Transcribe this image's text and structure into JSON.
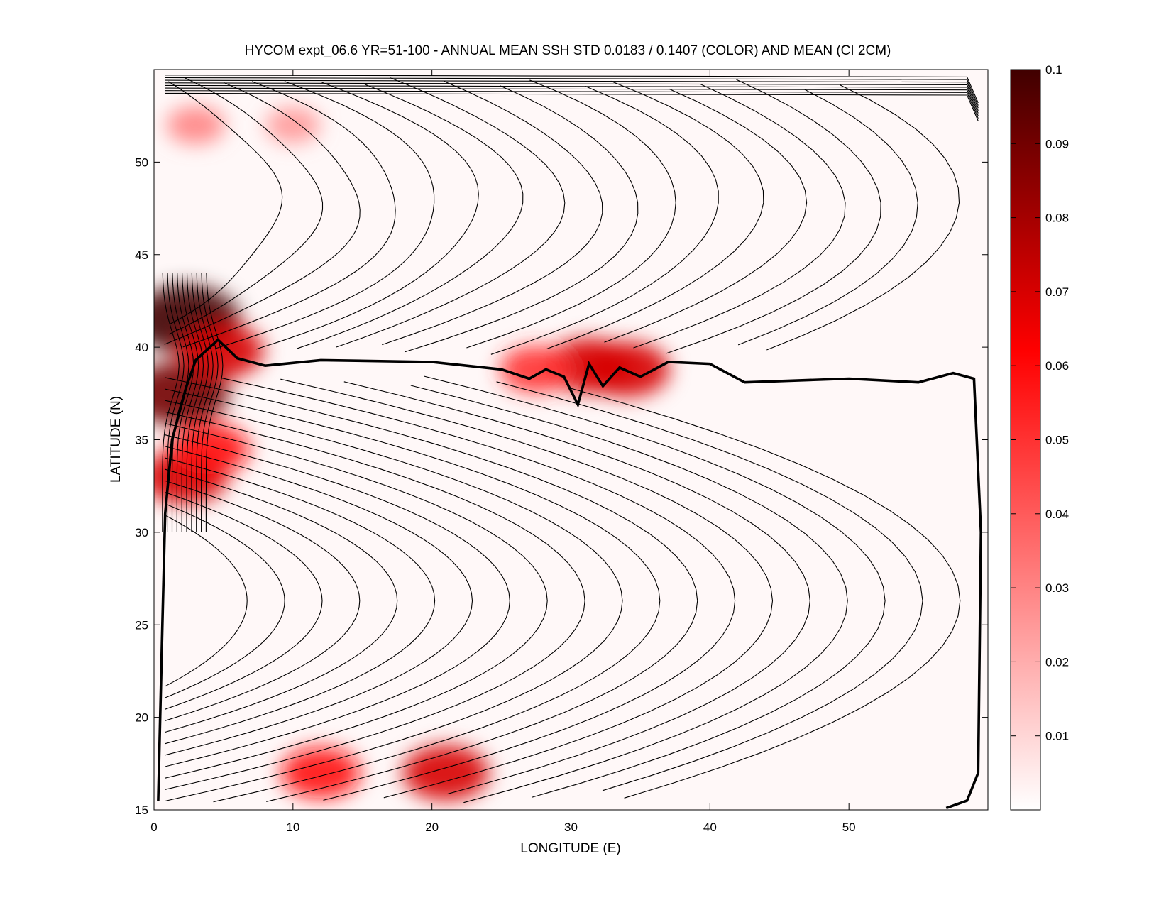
{
  "chart_data": {
    "type": "heatmap",
    "title": "HYCOM expt_06.6 YR=51-100 - ANNUAL MEAN SSH STD 0.0183 / 0.1407 (COLOR) AND MEAN (CI 2CM)",
    "xlabel": "LONGITUDE (E)",
    "ylabel": "LATITUDE (N)",
    "xlim": [
      0,
      60
    ],
    "ylim": [
      15,
      55
    ],
    "xticks": [
      0,
      10,
      20,
      30,
      40,
      50
    ],
    "yticks": [
      15,
      20,
      25,
      30,
      35,
      40,
      45,
      50
    ],
    "colorbar": {
      "range": [
        0,
        0.1
      ],
      "ticks": [
        0.01,
        0.02,
        0.03,
        0.04,
        0.05,
        0.06,
        0.07,
        0.08,
        0.09,
        0.1
      ],
      "tick_labels": [
        "0.01",
        "0.02",
        "0.03",
        "0.04",
        "0.05",
        "0.06",
        "0.07",
        "0.08",
        "0.09",
        "0.1"
      ],
      "colormap": [
        "#ffffff",
        "#ff0000",
        "#400000"
      ]
    },
    "ssh_std_hotspots": [
      {
        "lon": 2.3,
        "lat": 41.5,
        "value": 0.1
      },
      {
        "lon": 1.8,
        "lat": 37.5,
        "value": 0.09
      },
      {
        "lon": 2.2,
        "lat": 33.0,
        "value": 0.07
      },
      {
        "lon": 4.8,
        "lat": 39.8,
        "value": 0.07
      },
      {
        "lon": 4.0,
        "lat": 34.5,
        "value": 0.06
      },
      {
        "lon": 31.3,
        "lat": 39.0,
        "value": 0.07
      },
      {
        "lon": 34.0,
        "lat": 38.8,
        "value": 0.07
      },
      {
        "lon": 27.5,
        "lat": 38.8,
        "value": 0.05
      },
      {
        "lon": 12.0,
        "lat": 17.0,
        "value": 0.06
      },
      {
        "lon": 21.0,
        "lat": 17.0,
        "value": 0.07
      },
      {
        "lon": 3.0,
        "lat": 52.0,
        "value": 0.03
      },
      {
        "lon": 10.0,
        "lat": 52.0,
        "value": 0.025
      }
    ],
    "mean_zero_contour": [
      [
        0.3,
        15.5
      ],
      [
        0.6,
        25.0
      ],
      [
        0.8,
        31.0
      ],
      [
        1.3,
        35.0
      ],
      [
        2.3,
        37.8
      ],
      [
        3.0,
        39.3
      ],
      [
        4.6,
        40.4
      ],
      [
        6.0,
        39.4
      ],
      [
        8.0,
        39.0
      ],
      [
        12.0,
        39.3
      ],
      [
        20.0,
        39.2
      ],
      [
        25.0,
        38.8
      ],
      [
        27.0,
        38.3
      ],
      [
        28.2,
        38.8
      ],
      [
        29.5,
        38.4
      ],
      [
        30.5,
        36.9
      ],
      [
        31.3,
        39.1
      ],
      [
        32.3,
        37.9
      ],
      [
        33.5,
        38.9
      ],
      [
        35.0,
        38.4
      ],
      [
        37.0,
        39.2
      ],
      [
        40.0,
        39.1
      ],
      [
        42.5,
        38.1
      ],
      [
        50.0,
        38.3
      ],
      [
        55.0,
        38.1
      ],
      [
        57.5,
        38.6
      ],
      [
        59.0,
        38.3
      ],
      [
        59.5,
        30.0
      ],
      [
        59.3,
        17.0
      ],
      [
        58.5,
        15.5
      ],
      [
        57.0,
        15.1
      ]
    ],
    "contour_interval": "2 cm",
    "grid": false
  }
}
